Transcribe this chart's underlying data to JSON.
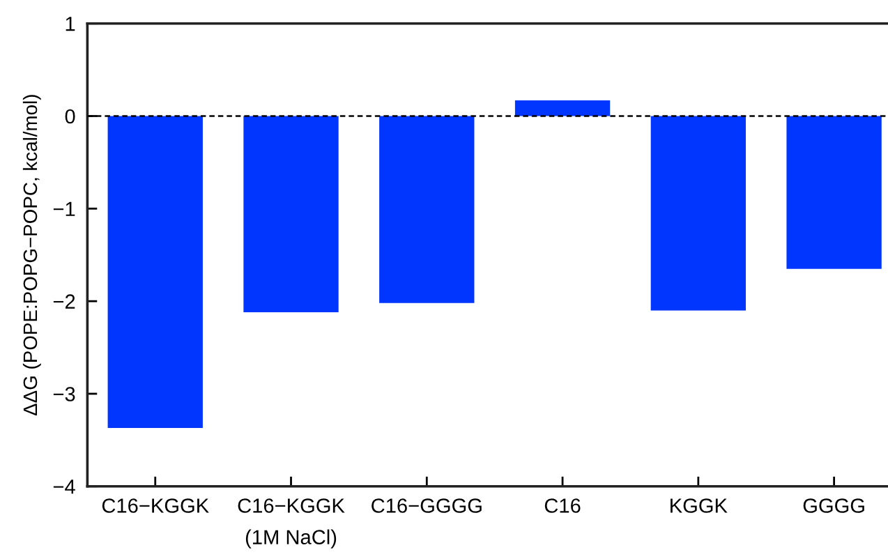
{
  "chart_data": {
    "type": "bar",
    "categories": [
      "C16−KGGK",
      "C16−KGGK\n(1M NaCl)",
      "C16−GGGG",
      "C16",
      "KGGK",
      "GGGG"
    ],
    "values": [
      -3.37,
      -2.12,
      -2.02,
      0.17,
      -2.1,
      -1.65
    ],
    "color": "#0036ff",
    "ylabel": "ΔΔG (POPE:POPG−POPC, kcal/mol)",
    "ylim": [
      -4,
      1
    ],
    "yticks": [
      {
        "value": -4,
        "label": "−4"
      },
      {
        "value": -3,
        "label": "−3"
      },
      {
        "value": -2,
        "label": "−2"
      },
      {
        "value": -1,
        "label": "−1"
      },
      0,
      1
    ],
    "ref_lines": [
      {
        "axis": "y",
        "value": 0,
        "color": "#000000",
        "line_style": "dashed"
      }
    ],
    "grid": false,
    "legend": false
  }
}
